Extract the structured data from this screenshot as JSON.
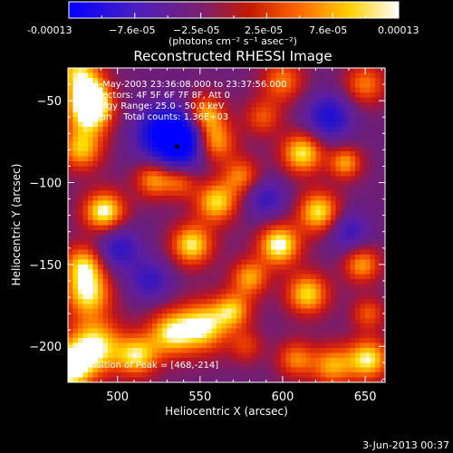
{
  "colorbar": {
    "tick_labels": [
      "-0.00013",
      "−7.6e-05",
      "−2.5e-05",
      "2.5e-05",
      "7.6e-05",
      "0.00013"
    ],
    "range": [
      -0.00013,
      0.00013
    ],
    "colormap": [
      "#0000ff",
      "#5a1aa8",
      "#8a1e4a",
      "#c41a00",
      "#ff6a00",
      "#ffd000",
      "#ffffff"
    ]
  },
  "units_label": "(photons cm⁻² s⁻¹ asec⁻²)",
  "chart_data": {
    "type": "heatmap",
    "title": "Reconstructed RHESSI Image",
    "xlabel": "Heliocentric X (arcsec)",
    "ylabel": "Heliocentric Y (arcsec)",
    "xlim": [
      470,
      662
    ],
    "ylim": [
      -222,
      -30
    ],
    "x_ticks": [
      500,
      550,
      600,
      650
    ],
    "y_ticks": [
      -50,
      -100,
      -150,
      -200
    ],
    "annotations": [
      "3-May-2003 23:36:08.000 to 23:37:56.000",
      "Detectors: 4F 5F 6F 7F 8F, Att 0",
      "Energy Range: 25.0 - 50.0 keV",
      "Clean    Total counts: 1.36E+03"
    ],
    "peak_label": "Position of Peak = [468,-214]",
    "marker_point": [
      536,
      -78
    ],
    "blobs": [
      {
        "x": 476,
        "y": -32,
        "a": 0.8,
        "s": 10
      },
      {
        "x": 483,
        "y": -58,
        "a": 0.9,
        "s": 10
      },
      {
        "x": 484,
        "y": -48,
        "a": 0.8,
        "s": 8
      },
      {
        "x": 478,
        "y": -80,
        "a": 0.75,
        "s": 9
      },
      {
        "x": 492,
        "y": -118,
        "a": 1.0,
        "s": 9
      },
      {
        "x": 480,
        "y": -150,
        "a": 0.8,
        "s": 9
      },
      {
        "x": 482,
        "y": -168,
        "a": 0.85,
        "s": 10
      },
      {
        "x": 486,
        "y": -200,
        "a": 0.95,
        "s": 12
      },
      {
        "x": 512,
        "y": -206,
        "a": 0.8,
        "s": 9
      },
      {
        "x": 528,
        "y": -70,
        "a": -0.9,
        "s": 12
      },
      {
        "x": 540,
        "y": -75,
        "a": -1.0,
        "s": 11
      },
      {
        "x": 522,
        "y": -98,
        "a": 0.7,
        "s": 8
      },
      {
        "x": 538,
        "y": -100,
        "a": 0.5,
        "s": 7
      },
      {
        "x": 553,
        "y": -58,
        "a": 0.8,
        "s": 8
      },
      {
        "x": 558,
        "y": -75,
        "a": 0.85,
        "s": 9
      },
      {
        "x": 560,
        "y": -112,
        "a": 0.85,
        "s": 9
      },
      {
        "x": 545,
        "y": -138,
        "a": 0.9,
        "s": 9
      },
      {
        "x": 570,
        "y": -178,
        "a": 0.7,
        "s": 8
      },
      {
        "x": 552,
        "y": -188,
        "a": 0.9,
        "s": 11
      },
      {
        "x": 532,
        "y": -192,
        "a": 0.8,
        "s": 10
      },
      {
        "x": 575,
        "y": -96,
        "a": 0.6,
        "s": 8
      },
      {
        "x": 588,
        "y": -60,
        "a": 0.5,
        "s": 8
      },
      {
        "x": 600,
        "y": -38,
        "a": 0.6,
        "s": 9
      },
      {
        "x": 612,
        "y": -82,
        "a": 0.9,
        "s": 9
      },
      {
        "x": 638,
        "y": -88,
        "a": 0.7,
        "s": 7
      },
      {
        "x": 650,
        "y": -40,
        "a": 0.6,
        "s": 9
      },
      {
        "x": 622,
        "y": -118,
        "a": 0.9,
        "s": 9
      },
      {
        "x": 598,
        "y": -138,
        "a": 1.0,
        "s": 9
      },
      {
        "x": 580,
        "y": -158,
        "a": 0.7,
        "s": 8
      },
      {
        "x": 615,
        "y": -168,
        "a": 0.85,
        "s": 9
      },
      {
        "x": 648,
        "y": -150,
        "a": 0.7,
        "s": 8
      },
      {
        "x": 608,
        "y": -208,
        "a": 0.6,
        "s": 8
      },
      {
        "x": 630,
        "y": -212,
        "a": 0.7,
        "s": 9
      },
      {
        "x": 652,
        "y": -208,
        "a": 0.9,
        "s": 9
      },
      {
        "x": 652,
        "y": -180,
        "a": 0.5,
        "s": 7
      },
      {
        "x": 470,
        "y": -214,
        "a": 1.0,
        "s": 10
      },
      {
        "x": 578,
        "y": -200,
        "a": 0.4,
        "s": 7
      },
      {
        "x": 500,
        "y": -140,
        "a": -0.6,
        "s": 10
      },
      {
        "x": 628,
        "y": -60,
        "a": -0.7,
        "s": 10
      },
      {
        "x": 640,
        "y": -130,
        "a": -0.5,
        "s": 9
      },
      {
        "x": 520,
        "y": -160,
        "a": -0.5,
        "s": 9
      },
      {
        "x": 590,
        "y": -110,
        "a": -0.5,
        "s": 9
      }
    ]
  },
  "footer": {
    "date_stamp": "3-Jun-2013 00:37"
  }
}
